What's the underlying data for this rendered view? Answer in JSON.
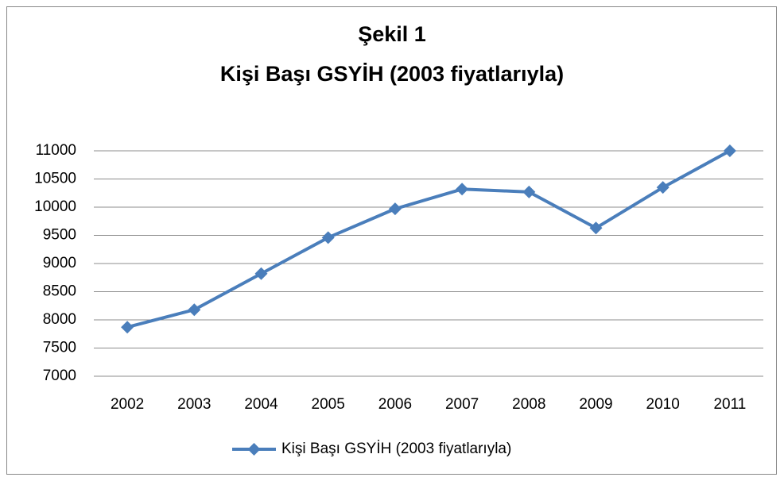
{
  "chart_data": {
    "type": "line",
    "title": "Şekil 1",
    "subtitle": "Kişi Başı GSYİH (2003 fiyatlarıyla)",
    "categories": [
      "2002",
      "2003",
      "2004",
      "2005",
      "2006",
      "2007",
      "2008",
      "2009",
      "2010",
      "2011"
    ],
    "series": [
      {
        "name": "Kişi Başı GSYİH (2003 fiyatlarıyla)",
        "color": "#4a7ebb",
        "values": [
          7870,
          8180,
          8820,
          9460,
          9970,
          10320,
          10270,
          9630,
          10350,
          11000
        ]
      }
    ],
    "ylim": [
      7000,
      11000
    ],
    "yticks": [
      7000,
      7500,
      8000,
      8500,
      9000,
      9500,
      10000,
      10500,
      11000
    ],
    "grid": true,
    "legend": "bottom"
  }
}
